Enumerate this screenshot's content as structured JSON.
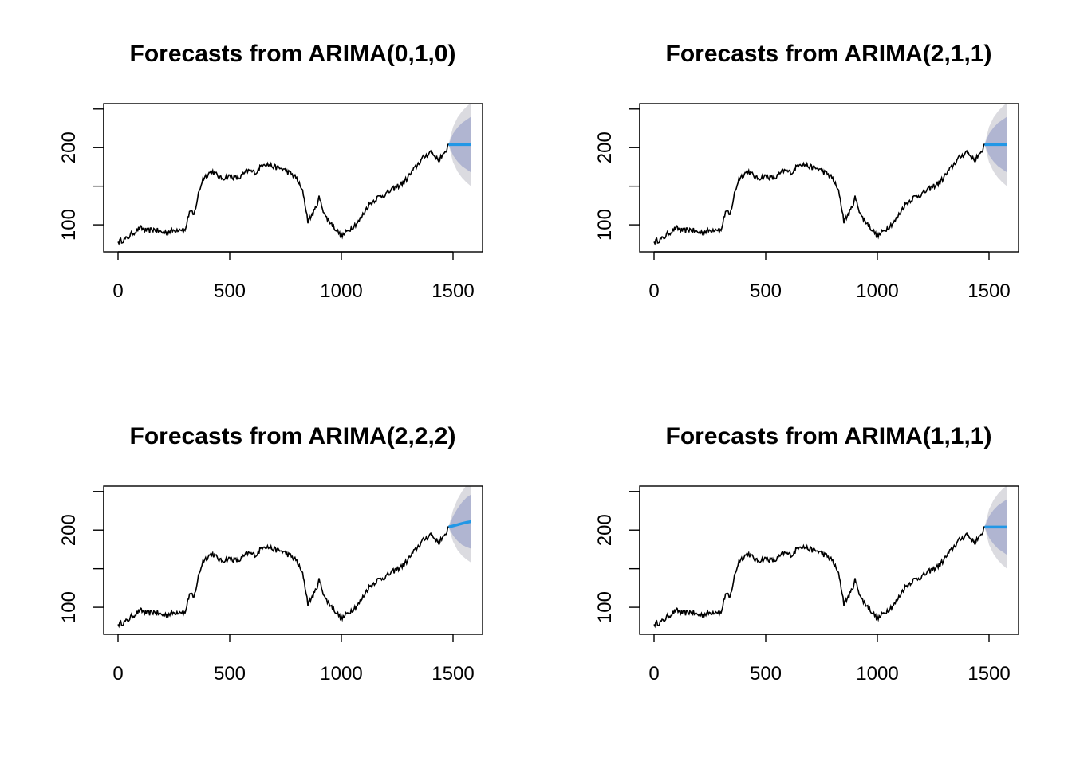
{
  "colors": {
    "history": "#000000",
    "forecast_mean": "#2297E6",
    "band_80": "#B0B5D1",
    "band_95": "#DBDBE0",
    "axis": "#000000"
  },
  "chart_data": [
    {
      "type": "line",
      "title": "Forecasts from ARIMA(0,1,0)",
      "xlabel": "",
      "ylabel": "",
      "xlim": [
        0,
        1575
      ],
      "ylim": [
        65,
        257
      ],
      "xticks": [
        "0",
        "500",
        "1000",
        "1500"
      ],
      "yticks": [
        "100",
        "",
        "200",
        ""
      ],
      "grid": false,
      "history": {
        "x": [
          0,
          20,
          40,
          60,
          80,
          100,
          130,
          160,
          200,
          240,
          280,
          300,
          320,
          340,
          360,
          380,
          400,
          420,
          460,
          500,
          540,
          580,
          620,
          650,
          700,
          740,
          780,
          800,
          830,
          850,
          880,
          900,
          930,
          960,
          1000,
          1040,
          1080,
          1120,
          1160,
          1200,
          1240,
          1280,
          1320,
          1360,
          1400,
          1430,
          1460,
          1480
        ],
        "y": [
          78,
          80,
          82,
          88,
          92,
          96,
          92,
          94,
          90,
          92,
          95,
          92,
          118,
          112,
          140,
          160,
          165,
          170,
          160,
          163,
          160,
          170,
          168,
          180,
          175,
          172,
          165,
          160,
          140,
          105,
          118,
          135,
          110,
          100,
          85,
          95,
          105,
          125,
          135,
          140,
          148,
          155,
          170,
          185,
          195,
          185,
          190,
          205
        ]
      },
      "forecast": {
        "x": [
          1480,
          1500,
          1520,
          1540,
          1560,
          1580
        ],
        "mean": [
          204,
          204,
          204,
          204,
          204,
          204
        ],
        "lo80": [
          204,
          190,
          182,
          176,
          172,
          168
        ],
        "hi80": [
          204,
          218,
          226,
          232,
          236,
          240
        ],
        "lo95": [
          204,
          181,
          169,
          161,
          155,
          150
        ],
        "hi95": [
          204,
          227,
          239,
          247,
          253,
          258
        ]
      }
    },
    {
      "type": "line",
      "title": "Forecasts from ARIMA(2,1,1)",
      "xlabel": "",
      "ylabel": "",
      "xlim": [
        0,
        1575
      ],
      "ylim": [
        65,
        257
      ],
      "xticks": [
        "0",
        "500",
        "1000",
        "1500"
      ],
      "yticks": [
        "100",
        "",
        "200",
        ""
      ],
      "grid": false,
      "history": {
        "x": [
          0,
          20,
          40,
          60,
          80,
          100,
          130,
          160,
          200,
          240,
          280,
          300,
          320,
          340,
          360,
          380,
          400,
          420,
          460,
          500,
          540,
          580,
          620,
          650,
          700,
          740,
          780,
          800,
          830,
          850,
          880,
          900,
          930,
          960,
          1000,
          1040,
          1080,
          1120,
          1160,
          1200,
          1240,
          1280,
          1320,
          1360,
          1400,
          1430,
          1460,
          1480
        ],
        "y": [
          78,
          80,
          82,
          88,
          92,
          96,
          92,
          94,
          90,
          92,
          95,
          92,
          118,
          112,
          140,
          160,
          165,
          170,
          160,
          163,
          160,
          170,
          168,
          180,
          175,
          172,
          165,
          160,
          140,
          105,
          118,
          135,
          110,
          100,
          85,
          95,
          105,
          125,
          135,
          140,
          148,
          155,
          170,
          185,
          195,
          185,
          190,
          205
        ]
      },
      "forecast": {
        "x": [
          1480,
          1500,
          1520,
          1540,
          1560,
          1580
        ],
        "mean": [
          204,
          204,
          204,
          204,
          204,
          204
        ],
        "lo80": [
          204,
          190,
          182,
          176,
          172,
          168
        ],
        "hi80": [
          204,
          218,
          226,
          232,
          236,
          240
        ],
        "lo95": [
          204,
          181,
          169,
          161,
          155,
          150
        ],
        "hi95": [
          204,
          227,
          239,
          247,
          253,
          258
        ]
      }
    },
    {
      "type": "line",
      "title": "Forecasts from ARIMA(2,2,2)",
      "xlabel": "",
      "ylabel": "",
      "xlim": [
        0,
        1575
      ],
      "ylim": [
        65,
        257
      ],
      "xticks": [
        "0",
        "500",
        "1000",
        "1500"
      ],
      "yticks": [
        "100",
        "",
        "200",
        ""
      ],
      "grid": false,
      "history": {
        "x": [
          0,
          20,
          40,
          60,
          80,
          100,
          130,
          160,
          200,
          240,
          280,
          300,
          320,
          340,
          360,
          380,
          400,
          420,
          460,
          500,
          540,
          580,
          620,
          650,
          700,
          740,
          780,
          800,
          830,
          850,
          880,
          900,
          930,
          960,
          1000,
          1040,
          1080,
          1120,
          1160,
          1200,
          1240,
          1280,
          1320,
          1360,
          1400,
          1430,
          1460,
          1480
        ],
        "y": [
          78,
          80,
          82,
          88,
          92,
          96,
          92,
          94,
          90,
          92,
          95,
          92,
          118,
          112,
          140,
          160,
          165,
          170,
          160,
          163,
          160,
          170,
          168,
          180,
          175,
          172,
          165,
          160,
          140,
          105,
          118,
          135,
          110,
          100,
          85,
          95,
          105,
          125,
          135,
          140,
          148,
          155,
          170,
          185,
          195,
          185,
          190,
          205
        ]
      },
      "forecast": {
        "x": [
          1480,
          1500,
          1520,
          1540,
          1560,
          1580
        ],
        "mean": [
          204,
          205.5,
          207,
          208.5,
          210,
          211
        ],
        "lo80": [
          204,
          193,
          186,
          181,
          178,
          176
        ],
        "hi80": [
          204,
          218,
          228,
          236,
          242,
          246
        ],
        "lo95": [
          204,
          185,
          174,
          167,
          162,
          158
        ],
        "hi95": [
          204,
          226,
          240,
          250,
          258,
          264
        ]
      }
    },
    {
      "type": "line",
      "title": "Forecasts from ARIMA(1,1,1)",
      "xlabel": "",
      "ylabel": "",
      "xlim": [
        0,
        1575
      ],
      "ylim": [
        65,
        257
      ],
      "xticks": [
        "0",
        "500",
        "1000",
        "1500"
      ],
      "yticks": [
        "100",
        "",
        "200",
        ""
      ],
      "grid": false,
      "history": {
        "x": [
          0,
          20,
          40,
          60,
          80,
          100,
          130,
          160,
          200,
          240,
          280,
          300,
          320,
          340,
          360,
          380,
          400,
          420,
          460,
          500,
          540,
          580,
          620,
          650,
          700,
          740,
          780,
          800,
          830,
          850,
          880,
          900,
          930,
          960,
          1000,
          1040,
          1080,
          1120,
          1160,
          1200,
          1240,
          1280,
          1320,
          1360,
          1400,
          1430,
          1460,
          1480
        ],
        "y": [
          78,
          80,
          82,
          88,
          92,
          96,
          92,
          94,
          90,
          92,
          95,
          92,
          118,
          112,
          140,
          160,
          165,
          170,
          160,
          163,
          160,
          170,
          168,
          180,
          175,
          172,
          165,
          160,
          140,
          105,
          118,
          135,
          110,
          100,
          85,
          95,
          105,
          125,
          135,
          140,
          148,
          155,
          170,
          185,
          195,
          185,
          190,
          205
        ]
      },
      "forecast": {
        "x": [
          1480,
          1500,
          1520,
          1540,
          1560,
          1580
        ],
        "mean": [
          204,
          204,
          204,
          204,
          204,
          204
        ],
        "lo80": [
          204,
          190,
          182,
          176,
          172,
          168
        ],
        "hi80": [
          204,
          218,
          226,
          232,
          236,
          240
        ],
        "lo95": [
          204,
          181,
          169,
          161,
          155,
          150
        ],
        "hi95": [
          204,
          227,
          239,
          247,
          253,
          258
        ]
      }
    }
  ]
}
